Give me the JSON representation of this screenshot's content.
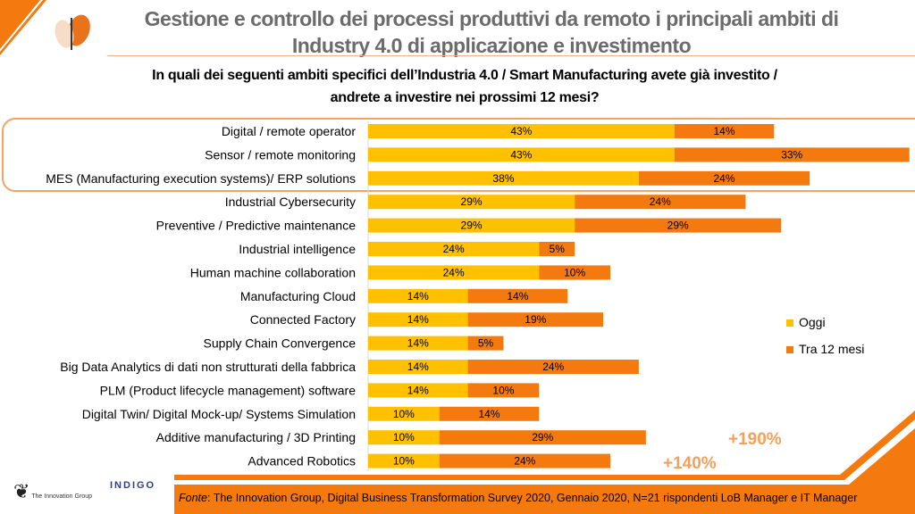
{
  "header": {
    "title_line1": "Gestione e controllo dei processi produttivi da remoto i principali ambiti di",
    "title_line2": "Industry 4.0 di applicazione e investimento",
    "question_line1": "In quali dei seguenti ambiti specifici dell’Industria 4.0 / Smart Manufacturing avete già investito /",
    "question_line2": "andrete a investire nei prossimi 12 mesi?"
  },
  "colors": {
    "accent": "#f47a10",
    "oggi": "#ffc000",
    "tra12": "#f47a10",
    "highlight_border": "#f4a460",
    "growth": "#f5a05a"
  },
  "chart_data": {
    "type": "bar",
    "orientation": "horizontal",
    "stacked": true,
    "categories": [
      "Digital / remote operator",
      "Sensor / remote monitoring",
      "MES (Manufacturing execution systems)/ ERP solutions",
      "Industrial Cybersecurity",
      "Preventive / Predictive maintenance",
      "Industrial intelligence",
      "Human machine collaboration",
      "Manufacturing Cloud",
      "Connected Factory",
      "Supply Chain Convergence",
      "Big Data Analytics di dati non strutturati della fabbrica",
      "PLM (Product lifecycle management) software",
      "Digital Twin/ Digital Mock-up/ Systems Simulation",
      "Additive manufacturing / 3D Printing",
      "Advanced Robotics"
    ],
    "series": [
      {
        "name": "Oggi",
        "values": [
          43,
          43,
          38,
          29,
          29,
          24,
          24,
          14,
          14,
          14,
          14,
          14,
          10,
          10,
          10
        ]
      },
      {
        "name": "Tra 12 mesi",
        "values": [
          14,
          33,
          24,
          24,
          29,
          5,
          10,
          14,
          19,
          5,
          24,
          10,
          14,
          29,
          24
        ]
      }
    ],
    "value_suffix": "%",
    "legend_position": "right",
    "grid": false,
    "highlighted_categories": [
      0,
      1,
      2
    ],
    "annotations": [
      {
        "category": "Additive manufacturing / 3D Printing",
        "text": "+190%"
      },
      {
        "category": "Advanced Robotics",
        "text": "+140%"
      }
    ]
  },
  "footer": {
    "fonte_label": "Fonte",
    "fonte_text": ": The Innovation Group, Digital Business Transformation Survey 2020, Gennaio 2020, N=21 rispondenti LoB Manager e IT Manager",
    "logo1": "The Innovation Group",
    "logo2": "INDIGO"
  }
}
